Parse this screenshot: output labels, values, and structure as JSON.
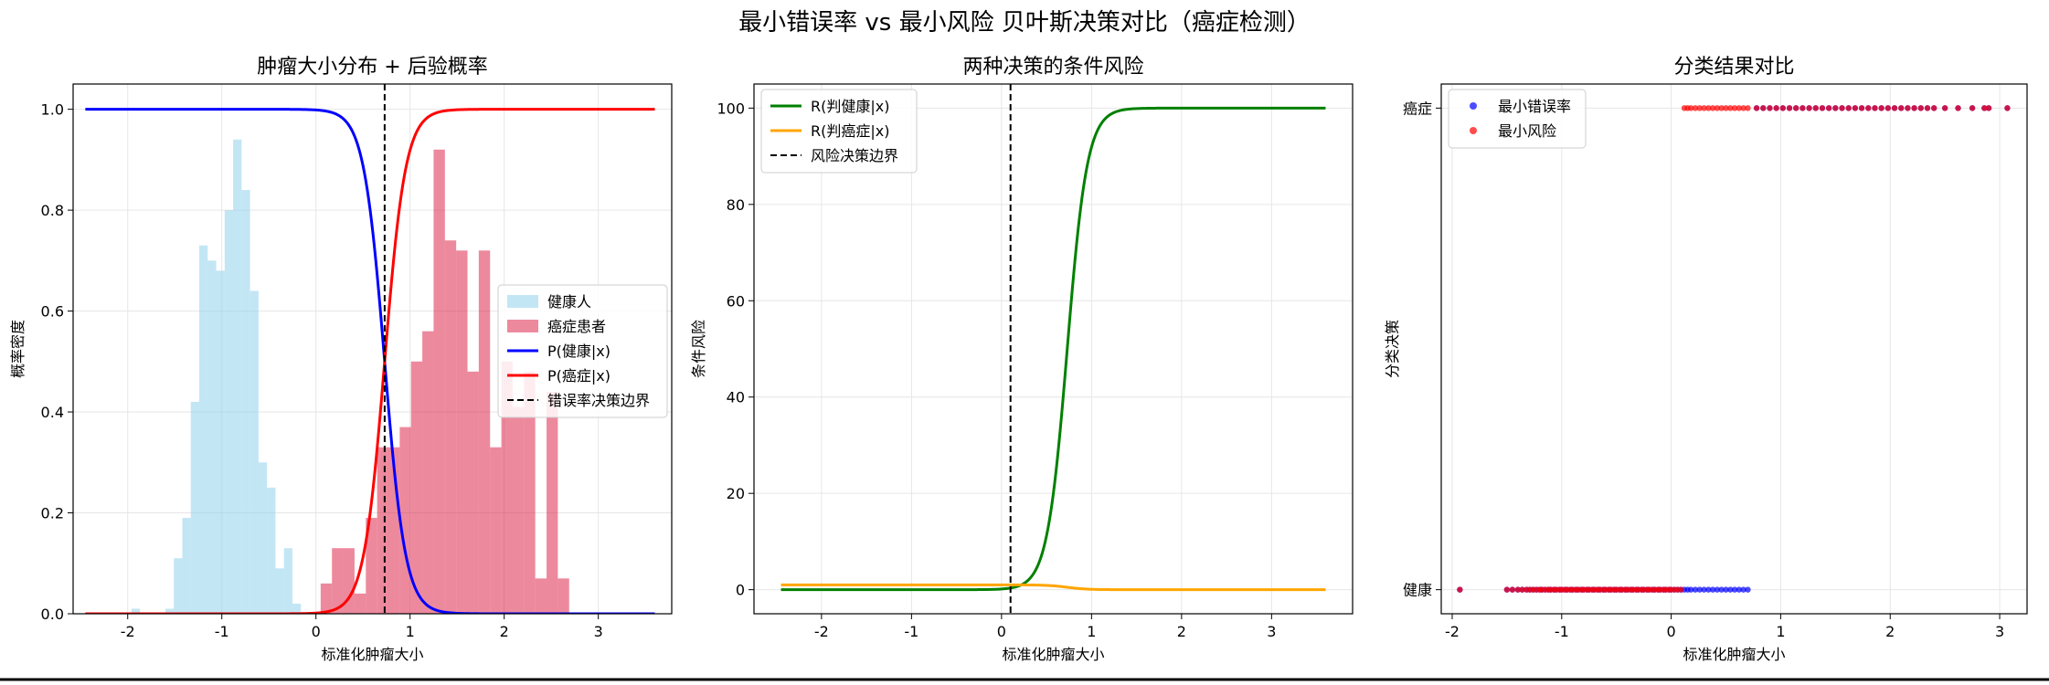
{
  "figure": {
    "title": "最小错误率 vs 最小风险 贝叶斯决策对比（癌症检测）"
  },
  "chart_data": [
    {
      "type": "bar",
      "title": "肿瘤大小分布 + 后验概率",
      "xlabel": "标准化肿瘤大小",
      "ylabel": "概率密度",
      "xlim": [
        -2.58,
        3.78
      ],
      "ylim": [
        0,
        1.05
      ],
      "xticks": [
        -2,
        -1,
        0,
        1,
        2,
        3
      ],
      "yticks": [
        0.0,
        0.2,
        0.4,
        0.6,
        0.8,
        1.0
      ],
      "grid": true,
      "legend_position": "center-right",
      "histograms": [
        {
          "name": "健康人",
          "color": "#87ceeb",
          "bin_width": 0.09,
          "bins": [
            {
              "x0": -1.96,
              "h": 0.01
            },
            {
              "x0": -1.87,
              "h": 0.0
            },
            {
              "x0": -1.78,
              "h": 0.0
            },
            {
              "x0": -1.69,
              "h": 0.0
            },
            {
              "x0": -1.6,
              "h": 0.01
            },
            {
              "x0": -1.51,
              "h": 0.11
            },
            {
              "x0": -1.42,
              "h": 0.19
            },
            {
              "x0": -1.33,
              "h": 0.42
            },
            {
              "x0": -1.24,
              "h": 0.73
            },
            {
              "x0": -1.15,
              "h": 0.7
            },
            {
              "x0": -1.06,
              "h": 0.68
            },
            {
              "x0": -0.97,
              "h": 0.8
            },
            {
              "x0": -0.88,
              "h": 0.94
            },
            {
              "x0": -0.79,
              "h": 0.84
            },
            {
              "x0": -0.7,
              "h": 0.64
            },
            {
              "x0": -0.61,
              "h": 0.3
            },
            {
              "x0": -0.52,
              "h": 0.25
            },
            {
              "x0": -0.43,
              "h": 0.09
            },
            {
              "x0": -0.34,
              "h": 0.13
            },
            {
              "x0": -0.25,
              "h": 0.02
            }
          ]
        },
        {
          "name": "癌症患者",
          "color": "#dc143c",
          "bin_width": 0.12,
          "bins": [
            {
              "x0": 0.05,
              "h": 0.06
            },
            {
              "x0": 0.17,
              "h": 0.13
            },
            {
              "x0": 0.29,
              "h": 0.13
            },
            {
              "x0": 0.41,
              "h": 0.04
            },
            {
              "x0": 0.53,
              "h": 0.19
            },
            {
              "x0": 0.65,
              "h": 0.33
            },
            {
              "x0": 0.77,
              "h": 0.33
            },
            {
              "x0": 0.89,
              "h": 0.37
            },
            {
              "x0": 1.01,
              "h": 0.5
            },
            {
              "x0": 1.13,
              "h": 0.56
            },
            {
              "x0": 1.25,
              "h": 0.92
            },
            {
              "x0": 1.37,
              "h": 0.74
            },
            {
              "x0": 1.49,
              "h": 0.72
            },
            {
              "x0": 1.61,
              "h": 0.48
            },
            {
              "x0": 1.73,
              "h": 0.72
            },
            {
              "x0": 1.85,
              "h": 0.33
            },
            {
              "x0": 1.97,
              "h": 0.5
            },
            {
              "x0": 2.09,
              "h": 0.41
            },
            {
              "x0": 2.21,
              "h": 0.48
            },
            {
              "x0": 2.33,
              "h": 0.07
            },
            {
              "x0": 2.45,
              "h": 0.44
            },
            {
              "x0": 2.57,
              "h": 0.07
            }
          ]
        }
      ],
      "lines": [
        {
          "name": "P(健康|x)",
          "color": "#0000ff",
          "kind": "sigmoid_down",
          "center": 0.73,
          "steepness": 9.0,
          "x_range": [
            -2.45,
            3.6
          ]
        },
        {
          "name": "P(癌症|x)",
          "color": "#ff0000",
          "kind": "sigmoid_up",
          "center": 0.73,
          "steepness": 9.0,
          "x_range": [
            -2.45,
            3.6
          ]
        }
      ],
      "vlines": [
        {
          "name": "错误率决策边界",
          "x": 0.73,
          "color": "#000000",
          "dashed": true
        }
      ]
    },
    {
      "type": "line",
      "title": "两种决策的条件风险",
      "xlabel": "标准化肿瘤大小",
      "ylabel": "条件风险",
      "xlim": [
        -2.75,
        3.9
      ],
      "ylim": [
        -5,
        105
      ],
      "xticks": [
        -2,
        -1,
        0,
        1,
        2,
        3
      ],
      "yticks": [
        0,
        20,
        40,
        60,
        80,
        100
      ],
      "grid": true,
      "legend_position": "top-left",
      "lines": [
        {
          "name": "R(判健康|x)",
          "color": "#008000",
          "kind": "sigmoid_up",
          "center": 0.73,
          "steepness": 9.0,
          "scale": 100,
          "offset": 0,
          "x_range": [
            -2.45,
            3.6
          ]
        },
        {
          "name": "R(判癌症|x)",
          "color": "#ffa500",
          "kind": "sigmoid_down",
          "center": 0.73,
          "steepness": 9.0,
          "scale": 1.0,
          "offset": 0,
          "x_range": [
            -2.45,
            3.6
          ]
        }
      ],
      "vlines": [
        {
          "name": "风险决策边界",
          "x": 0.1,
          "color": "#000000",
          "dashed": true
        }
      ]
    },
    {
      "type": "scatter",
      "title": "分类结果对比",
      "xlabel": "标准化肿瘤大小",
      "ylabel": "分类决策",
      "xlim": [
        -2.1,
        3.25
      ],
      "ylim": [
        -0.05,
        1.05
      ],
      "xticks": [
        -2,
        -1,
        0,
        1,
        2,
        3
      ],
      "ytick_values": [
        0,
        1
      ],
      "ytick_labels": [
        "健康",
        "癌症"
      ],
      "grid": true,
      "legend_position": "top-left",
      "series": [
        {
          "name": "最小错误率",
          "color": "#0000ff",
          "threshold": 0.73,
          "x": [
            -1.93,
            -1.5,
            -1.45,
            -1.4,
            -1.36,
            -1.32,
            -1.29,
            -1.26,
            -1.23,
            -1.2,
            -1.18,
            -1.15,
            -1.12,
            -1.1,
            -1.07,
            -1.05,
            -1.02,
            -1.0,
            -0.97,
            -0.95,
            -0.92,
            -0.9,
            -0.87,
            -0.85,
            -0.82,
            -0.8,
            -0.77,
            -0.75,
            -0.72,
            -0.7,
            -0.67,
            -0.65,
            -0.62,
            -0.6,
            -0.57,
            -0.55,
            -0.52,
            -0.5,
            -0.47,
            -0.45,
            -0.42,
            -0.4,
            -0.37,
            -0.35,
            -0.32,
            -0.3,
            -0.27,
            -0.25,
            -0.22,
            -0.2,
            -0.17,
            -0.15,
            -0.12,
            -0.1,
            -0.07,
            -0.05,
            -0.02,
            0.0,
            0.03,
            0.06,
            0.09,
            0.12,
            0.15,
            0.18,
            0.22,
            0.26,
            0.3,
            0.34,
            0.38,
            0.42,
            0.46,
            0.5,
            0.54,
            0.58,
            0.62,
            0.66,
            0.7,
            0.78,
            0.84,
            0.9,
            0.96,
            1.02,
            1.08,
            1.14,
            1.2,
            1.26,
            1.32,
            1.38,
            1.44,
            1.5,
            1.56,
            1.62,
            1.68,
            1.74,
            1.8,
            1.86,
            1.92,
            1.98,
            2.04,
            2.1,
            2.16,
            2.22,
            2.28,
            2.34,
            2.4,
            2.5,
            2.62,
            2.75,
            2.86,
            2.9,
            3.07
          ]
        },
        {
          "name": "最小风险",
          "color": "#ff0000",
          "threshold": 0.1,
          "x": [
            -1.93,
            -1.5,
            -1.45,
            -1.4,
            -1.36,
            -1.32,
            -1.29,
            -1.26,
            -1.23,
            -1.2,
            -1.18,
            -1.15,
            -1.12,
            -1.1,
            -1.07,
            -1.05,
            -1.02,
            -1.0,
            -0.97,
            -0.95,
            -0.92,
            -0.9,
            -0.87,
            -0.85,
            -0.82,
            -0.8,
            -0.77,
            -0.75,
            -0.72,
            -0.7,
            -0.67,
            -0.65,
            -0.62,
            -0.6,
            -0.57,
            -0.55,
            -0.52,
            -0.5,
            -0.47,
            -0.45,
            -0.42,
            -0.4,
            -0.37,
            -0.35,
            -0.32,
            -0.3,
            -0.27,
            -0.25,
            -0.22,
            -0.2,
            -0.17,
            -0.15,
            -0.12,
            -0.1,
            -0.07,
            -0.05,
            -0.02,
            0.0,
            0.03,
            0.06,
            0.09,
            0.12,
            0.15,
            0.18,
            0.22,
            0.26,
            0.3,
            0.34,
            0.38,
            0.42,
            0.46,
            0.5,
            0.54,
            0.58,
            0.62,
            0.66,
            0.7,
            0.78,
            0.84,
            0.9,
            0.96,
            1.02,
            1.08,
            1.14,
            1.2,
            1.26,
            1.32,
            1.38,
            1.44,
            1.5,
            1.56,
            1.62,
            1.68,
            1.74,
            1.8,
            1.86,
            1.92,
            1.98,
            2.04,
            2.1,
            2.16,
            2.22,
            2.28,
            2.34,
            2.4,
            2.5,
            2.62,
            2.75,
            2.86,
            2.9,
            3.07
          ]
        }
      ]
    }
  ]
}
